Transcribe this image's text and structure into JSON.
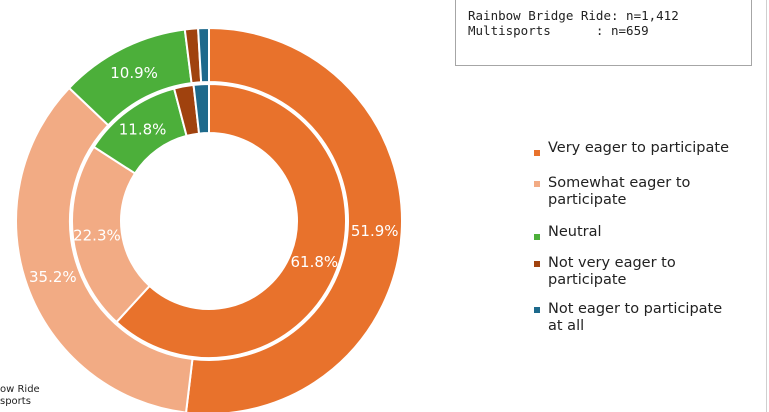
{
  "n_box": {
    "line1": "Rainbow Bridge Ride: n=1,412",
    "line2": "Multisports      : n=659"
  },
  "legend": [
    {
      "label": "Very eager to participate",
      "color": "#e8722c"
    },
    {
      "label": "Somewhat eager to\nparticipate",
      "color": "#f2ab84"
    },
    {
      "label": "Neutral",
      "color": "#4caf3a"
    },
    {
      "label": "Not very eager to\nparticipate",
      "color": "#a0420e"
    },
    {
      "label": "Not eager to participate\nat all",
      "color": "#1d6a8c"
    }
  ],
  "bottom_note": {
    "line1": "ow Ride",
    "line2": "sports"
  },
  "chart_data": {
    "type": "pie",
    "subtype": "nested-donut",
    "categories": [
      "Very eager to participate",
      "Somewhat eager to participate",
      "Neutral",
      "Not very eager to participate",
      "Not eager to participate at all"
    ],
    "colors": [
      "#e8722c",
      "#f2ab84",
      "#4caf3a",
      "#a0420e",
      "#1d6a8c"
    ],
    "series": [
      {
        "ring": "outer",
        "values": [
          51.9,
          35.2,
          10.9,
          1.1,
          0.9
        ],
        "labels": [
          "51.9%",
          "35.2%",
          "10.9%",
          "",
          ""
        ]
      },
      {
        "ring": "inner",
        "values": [
          61.8,
          22.3,
          11.8,
          2.3,
          1.8
        ],
        "labels": [
          "61.8%",
          "22.3%",
          "11.8%",
          "",
          ""
        ]
      }
    ]
  }
}
